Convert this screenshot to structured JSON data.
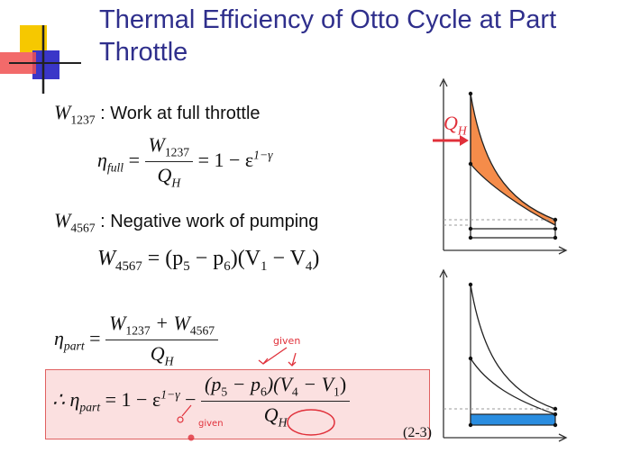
{
  "slide": {
    "title": "Thermal Efficiency of Otto Cycle at Part Throttle",
    "slide_number": "(2-3)"
  },
  "line1": {
    "var": "W",
    "sub": "1237",
    "text": ": Work at full throttle"
  },
  "eq1": {
    "eta": "η",
    "eta_sub": "full",
    "eq": "=",
    "num": "W",
    "num_sub": "1237",
    "den": "Q",
    "den_sub": "H",
    "rhs": "= 1 − ε",
    "rhs_sup": "1−γ"
  },
  "line2": {
    "var": "W",
    "sub": "4567",
    "text": ": Negative work of pumping"
  },
  "eq2": {
    "lhs": "W",
    "lhs_sub": "4567",
    "rhs": "= (p",
    "p5": "5",
    "mid": " − p",
    "p6": "6",
    "mid2": ")(V",
    "v1": "1",
    "mid3": " − V",
    "v4": "4",
    "end": ")"
  },
  "eq3": {
    "eta": "η",
    "eta_sub": "part",
    "eq": "=",
    "num": "W",
    "num_sub1": "1237",
    "plus": " + W",
    "num_sub2": "4567",
    "den": "Q",
    "den_sub": "H"
  },
  "eq4": {
    "therefore": "∴ η",
    "eta_sub": "part",
    "rhs": "= 1 − ε",
    "rhs_sup": "1−γ",
    "minus": "−",
    "num": "(p",
    "p5": "5",
    "mid": " − p",
    "p6": "6",
    "mid2": ")(V",
    "v4": "4",
    "mid3": " − V",
    "v1": "1",
    "end": ")",
    "den": "Q",
    "den_sub": "H"
  },
  "annotations": {
    "given_top": "given",
    "given_bottom": "given"
  },
  "diagram_top": {
    "label": "Q",
    "label_sub": "H"
  },
  "colors": {
    "title": "#2f2f8c",
    "fill_top": "#f58c4a",
    "fill_bottom": "#2a8de0",
    "highlight": "#fbe0e0",
    "ink": "#e0303a"
  }
}
